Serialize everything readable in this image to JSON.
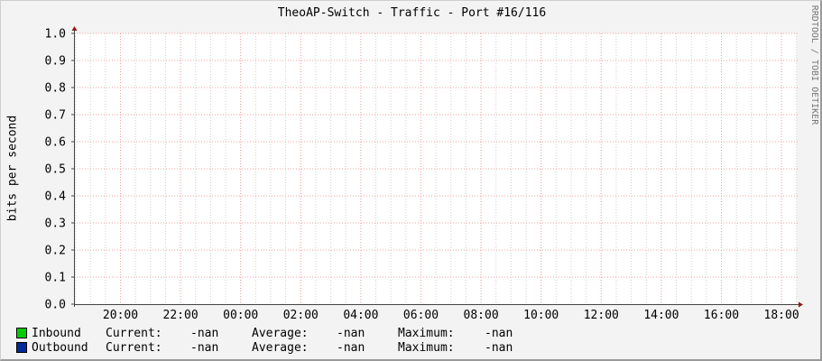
{
  "title": "TheoAP-Switch - Traffic - Port #16/116",
  "watermark": "RRDTOOL / TOBI OETIKER",
  "colors": {
    "background": "#f3f3f3",
    "plot": "#ffffff",
    "major_grid": "#f4a0a0",
    "minor_grid": "#d0d0d0",
    "axis": "#444444",
    "arrow": "#8b1a1a"
  },
  "chart_data": {
    "type": "line",
    "title": "TheoAP-Switch - Traffic - Port #16/116",
    "ylabel": "bits per second",
    "xlabel": "",
    "ylim": [
      0,
      1.0
    ],
    "yticks": [
      "0.0",
      "0.1",
      "0.2",
      "0.3",
      "0.4",
      "0.5",
      "0.6",
      "0.7",
      "0.8",
      "0.9",
      "1.0"
    ],
    "xticks": [
      "20:00",
      "22:00",
      "00:00",
      "02:00",
      "04:00",
      "06:00",
      "08:00",
      "10:00",
      "12:00",
      "14:00",
      "16:00",
      "18:00"
    ],
    "grid": true,
    "legend_position": "bottom",
    "series": [
      {
        "name": "Inbound",
        "color": "#00cc00",
        "values": []
      },
      {
        "name": "Outbound",
        "color": "#002a97",
        "values": []
      }
    ]
  },
  "legend": [
    {
      "name": "Inbound",
      "color": "#00cc00",
      "current_label": "Current:",
      "current": "-nan",
      "average_label": "Average:",
      "average": "-nan",
      "maximum_label": "Maximum:",
      "maximum": "-nan"
    },
    {
      "name": "Outbound",
      "color": "#002a97",
      "current_label": "Current:",
      "current": "-nan",
      "average_label": "Average:",
      "average": "-nan",
      "maximum_label": "Maximum:",
      "maximum": "-nan"
    }
  ]
}
